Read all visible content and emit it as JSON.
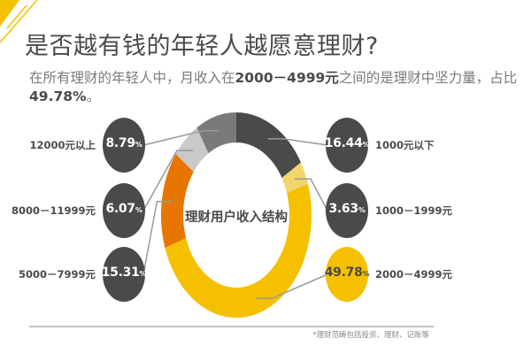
{
  "header": {
    "title": "是否越有钱的年轻人越愿意理财?",
    "subtitle_pre": "在所有理财的年轻人中，月收入在",
    "subtitle_bold1": "2000－4999元",
    "subtitle_mid": "之间的是理财中坚力量，占比",
    "subtitle_bold2": "49.78%",
    "subtitle_end": "。"
  },
  "footnote": "*理财范畴包括投资、理财、记账等",
  "chart_data": {
    "type": "pie",
    "donut": true,
    "title": "理财用户收入结构",
    "unit": "%",
    "slices": [
      {
        "label": "1000元以下",
        "value": 16.44,
        "display": "16.44",
        "color": "#4a4a4a"
      },
      {
        "label": "1000－1999元",
        "value": 3.63,
        "display": "3.63",
        "color": "#f2d56e"
      },
      {
        "label": "2000－4999元",
        "value": 49.78,
        "display": "49.78",
        "color": "#f5c000"
      },
      {
        "label": "5000－7999元",
        "value": 15.31,
        "display": "15.31",
        "color": "#e87500"
      },
      {
        "label": "8000－11999元",
        "value": 6.07,
        "display": "6.07",
        "color": "#c9c9c7"
      },
      {
        "label": "12000元以上",
        "value": 8.79,
        "display": "8.79",
        "color": "#7a7a7a"
      }
    ]
  }
}
